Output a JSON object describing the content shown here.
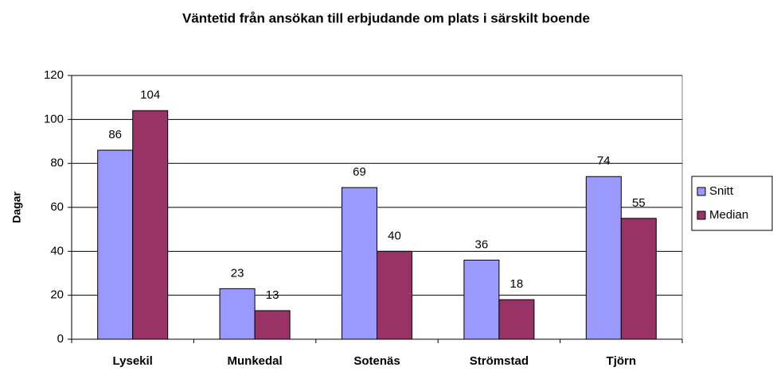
{
  "chart_data": {
    "type": "bar",
    "title": "Väntetid från ansökan till erbjudande om plats i särskilt boende",
    "y_label": "Dagar",
    "categories": [
      "Lysekil",
      "Munkedal",
      "Sotenäs",
      "Strömstad",
      "Tjörn"
    ],
    "series": [
      {
        "name": "Snitt",
        "color": "#9999ff",
        "values": [
          86,
          23,
          69,
          36,
          74
        ]
      },
      {
        "name": "Median",
        "color": "#993366",
        "values": [
          104,
          13,
          40,
          18,
          55
        ]
      }
    ],
    "ylim": [
      0,
      120
    ],
    "yticks": [
      0,
      20,
      40,
      60,
      80,
      100,
      120
    ],
    "grid": true,
    "legend": "right"
  }
}
